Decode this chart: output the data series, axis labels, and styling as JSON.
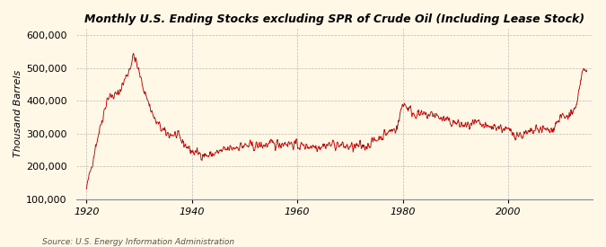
{
  "title": "Monthly U.S. Ending Stocks excluding SPR of Crude Oil (Including Lease Stock)",
  "ylabel": "Thousand Barrels",
  "source": "Source: U.S. Energy Information Administration",
  "line_color": "#CC0000",
  "background_color": "#FFF8E7",
  "plot_bg_color": "#FFF8E7",
  "grid_color": "#AAAAAA",
  "xlim": [
    1918,
    2016
  ],
  "ylim": [
    100000,
    620000
  ],
  "yticks": [
    100000,
    200000,
    300000,
    400000,
    500000,
    600000
  ],
  "xticks": [
    1920,
    1940,
    1960,
    1980,
    2000
  ],
  "control_years": [
    1920,
    1922,
    1924,
    1926,
    1928,
    1929,
    1931,
    1933,
    1935,
    1937,
    1940,
    1943,
    1946,
    1949,
    1952,
    1955,
    1958,
    1961,
    1964,
    1967,
    1970,
    1973,
    1976,
    1979,
    1980,
    1982,
    1984,
    1986,
    1988,
    1990,
    1992,
    1994,
    1996,
    1998,
    2000,
    2002,
    2004,
    2006,
    2008,
    2010,
    2011,
    2012,
    2013,
    2014
  ],
  "control_values": [
    130000,
    280000,
    410000,
    420000,
    490000,
    540000,
    430000,
    340000,
    300000,
    295000,
    245000,
    232000,
    248000,
    262000,
    262000,
    267000,
    272000,
    262000,
    262000,
    268000,
    258000,
    262000,
    292000,
    320000,
    395000,
    362000,
    355000,
    358000,
    340000,
    332000,
    322000,
    330000,
    318000,
    322000,
    308000,
    295000,
    300000,
    315000,
    307000,
    352000,
    348000,
    362000,
    378000,
    488000
  ]
}
